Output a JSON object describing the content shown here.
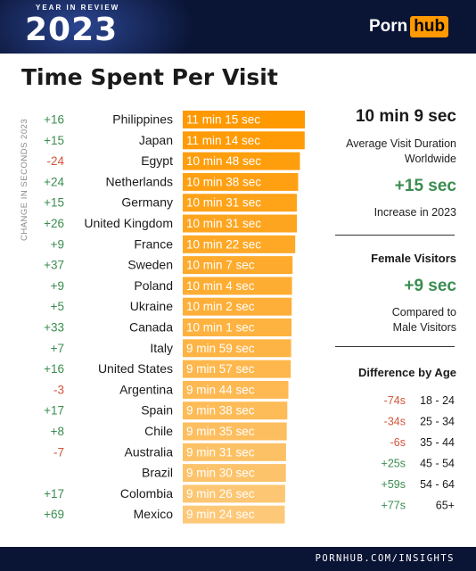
{
  "header": {
    "badge_text": "YEAR IN REVIEW",
    "year": "2023",
    "logo_part1": "Porn",
    "logo_part2": "hub"
  },
  "title": "Time Spent Per Visit",
  "vertical_label": "CHANGE IN SECONDS 2023",
  "chart_data": {
    "type": "bar",
    "orientation": "horizontal",
    "title": "Time Spent Per Visit",
    "categories": [
      "Philippines",
      "Japan",
      "Egypt",
      "Netherlands",
      "Germany",
      "United Kingdom",
      "France",
      "Sweden",
      "Poland",
      "Ukraine",
      "Canada",
      "Italy",
      "United States",
      "Argentina",
      "Spain",
      "Chile",
      "Australia",
      "Brazil",
      "Colombia",
      "Mexico"
    ],
    "value_labels": [
      "11 min 15 sec",
      "11 min 14 sec",
      "10 min 48 sec",
      "10 min 38 sec",
      "10 min 31 sec",
      "10 min 31 sec",
      "10 min 22 sec",
      "10 min 7 sec",
      "10 min 4 sec",
      "10 min 2 sec",
      "10 min 1 sec",
      "9 min 59 sec",
      "9 min 57 sec",
      "9 min 44 sec",
      "9 min 38 sec",
      "9 min 35 sec",
      "9 min 31 sec",
      "9 min 30 sec",
      "9 min 26 sec",
      "9 min 24 sec"
    ],
    "values_seconds": [
      675,
      674,
      648,
      638,
      631,
      631,
      622,
      607,
      604,
      602,
      601,
      599,
      597,
      584,
      578,
      575,
      571,
      570,
      566,
      564
    ],
    "change_labels": [
      "+16",
      "+15",
      "-24",
      "+24",
      "+15",
      "+26",
      "+9",
      "+37",
      "+9",
      "+5",
      "+33",
      "+7",
      "+16",
      "-3",
      "+17",
      "+8",
      "-7",
      "",
      "+17",
      "+69"
    ],
    "colors": {
      "bar_top": "#ff9900",
      "bar_bottom": "#fdc878",
      "positive": "#3a8d50",
      "negative": "#d2553a"
    }
  },
  "summary": {
    "avg_value": "10 min 9 sec",
    "avg_label_1": "Average Visit Duration",
    "avg_label_2": "Worldwide",
    "increase_value": "+15 sec",
    "increase_label": "Increase in 2023",
    "female_heading": "Female Visitors",
    "female_value": "+9 sec",
    "female_label_1": "Compared to",
    "female_label_2": "Male Visitors",
    "age_heading": "Difference by Age",
    "age_rows": [
      {
        "diff": "-74s",
        "range": "18 - 24",
        "sign": "neg"
      },
      {
        "diff": "-34s",
        "range": "25 - 34",
        "sign": "neg"
      },
      {
        "diff": "-6s",
        "range": "35 - 44",
        "sign": "neg"
      },
      {
        "diff": "+25s",
        "range": "45 - 54",
        "sign": "pos"
      },
      {
        "diff": "+59s",
        "range": "54 - 64",
        "sign": "pos"
      },
      {
        "diff": "+77s",
        "range": "65+",
        "sign": "pos"
      }
    ]
  },
  "footer": {
    "url": "PORNHUB.COM/INSIGHTS"
  }
}
